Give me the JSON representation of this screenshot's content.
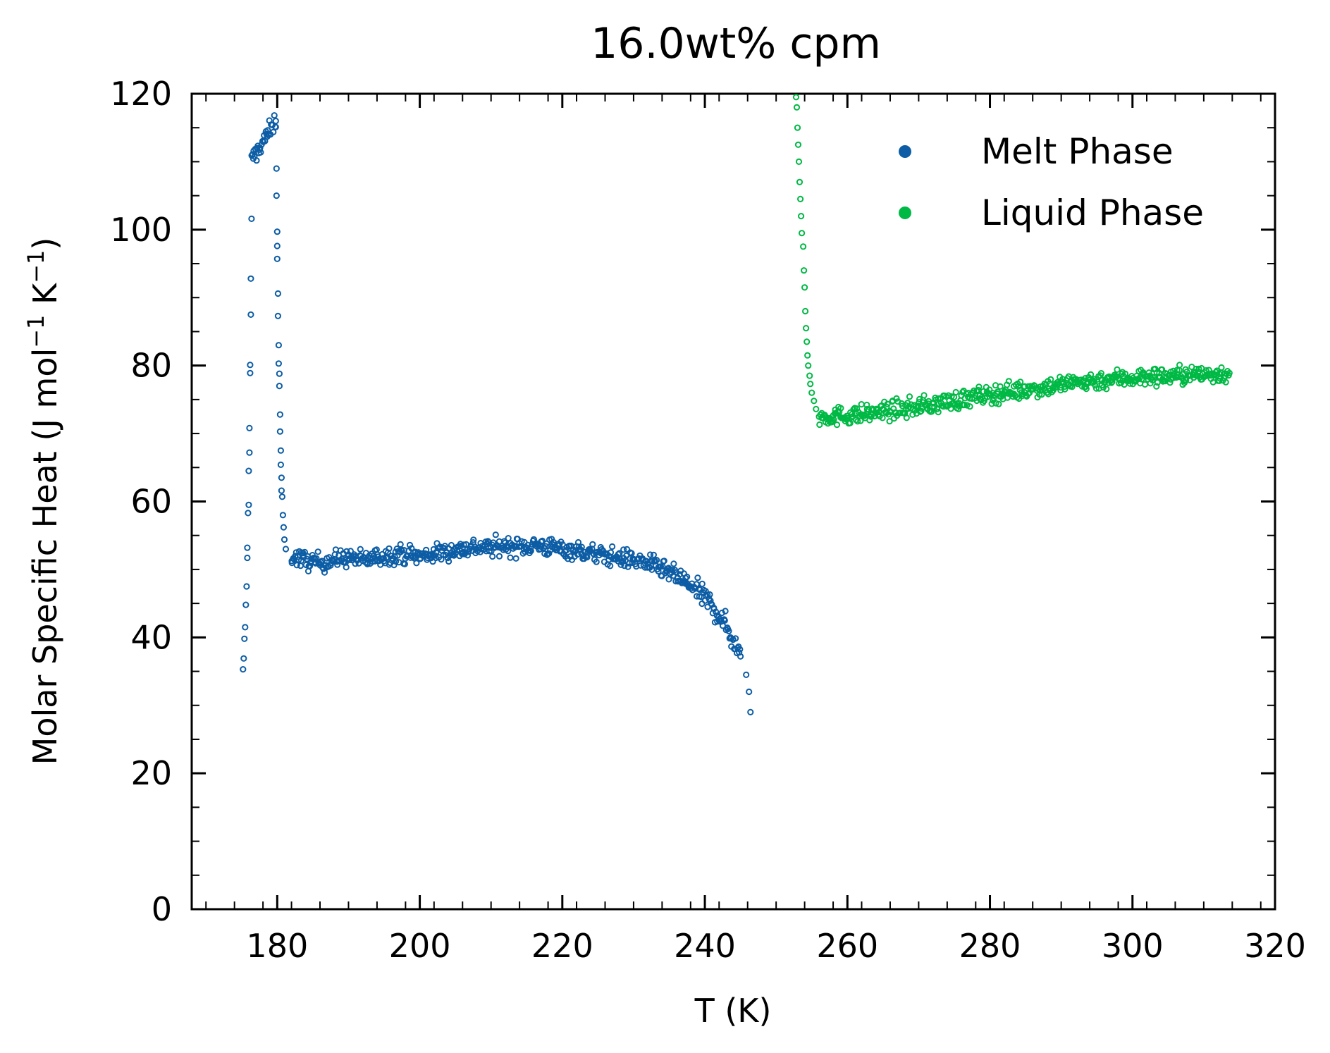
{
  "chart_data": {
    "type": "scatter",
    "title": "16.0wt% cpm",
    "xlabel": "T (K)",
    "ylabel": "Molar Specific Heat (J mol",
    "ylabel_unit_mid": " K",
    "ylabel_sup": "−1",
    "ylabel_close": ")",
    "xlim": [
      168,
      320
    ],
    "ylim": [
      0,
      120
    ],
    "x_ticks": [
      180,
      200,
      220,
      240,
      260,
      280,
      300,
      320
    ],
    "y_ticks": [
      0,
      20,
      40,
      60,
      80,
      100,
      120
    ],
    "x_tick_labels": [
      "180",
      "200",
      "220",
      "240",
      "260",
      "280",
      "300",
      "320"
    ],
    "y_tick_labels": [
      "0",
      "20",
      "40",
      "60",
      "80",
      "100",
      "120"
    ],
    "grid": false,
    "legend_position": "top-right",
    "series": [
      {
        "name": "Melt Phase",
        "color": "#0c5da5",
        "points": [
          [
            175.2,
            35.3
          ],
          [
            175.3,
            36.9
          ],
          [
            175.4,
            39.8
          ],
          [
            175.5,
            41.5
          ],
          [
            175.6,
            44.8
          ],
          [
            175.7,
            47.5
          ],
          [
            175.8,
            51.7
          ],
          [
            175.8,
            53.2
          ],
          [
            175.9,
            58.3
          ],
          [
            176.0,
            59.5
          ],
          [
            176.0,
            64.5
          ],
          [
            176.1,
            67.2
          ],
          [
            176.1,
            70.8
          ],
          [
            176.2,
            78.9
          ],
          [
            176.2,
            80.1
          ],
          [
            176.3,
            87.5
          ],
          [
            176.3,
            92.8
          ],
          [
            176.4,
            101.6
          ],
          [
            176.4,
            110.2
          ],
          [
            179.8,
            116.0
          ],
          [
            179.8,
            115.1
          ],
          [
            179.9,
            109.0
          ],
          [
            179.9,
            105.0
          ],
          [
            180.0,
            99.7
          ],
          [
            180.0,
            97.6
          ],
          [
            180.0,
            95.7
          ],
          [
            180.1,
            90.6
          ],
          [
            180.1,
            87.3
          ],
          [
            180.2,
            83.0
          ],
          [
            180.2,
            80.3
          ],
          [
            180.3,
            78.8
          ],
          [
            180.3,
            77.0
          ],
          [
            180.4,
            72.8
          ],
          [
            180.4,
            70.3
          ],
          [
            180.5,
            67.5
          ],
          [
            180.5,
            65.4
          ],
          [
            180.6,
            63.5
          ],
          [
            180.6,
            61.6
          ],
          [
            180.7,
            60.7
          ],
          [
            180.8,
            58.0
          ],
          [
            180.9,
            56.2
          ],
          [
            181.0,
            54.4
          ],
          [
            181.2,
            53.0
          ],
          [
            182,
            52.0
          ],
          [
            184,
            51.3
          ],
          [
            186,
            51.0
          ],
          [
            188,
            51.4
          ],
          [
            190,
            51.8
          ],
          [
            192,
            51.3
          ],
          [
            194,
            51.8
          ],
          [
            196,
            52.2
          ],
          [
            198,
            52.3
          ],
          [
            200,
            51.9
          ],
          [
            202,
            52.3
          ],
          [
            204,
            52.7
          ],
          [
            206,
            53.0
          ],
          [
            208,
            53.3
          ],
          [
            210,
            53.2
          ],
          [
            212,
            53.5
          ],
          [
            214,
            53.3
          ],
          [
            216,
            53.6
          ],
          [
            218,
            53.3
          ],
          [
            220,
            53.0
          ],
          [
            222,
            52.8
          ],
          [
            224,
            52.4
          ],
          [
            226,
            52.0
          ],
          [
            228,
            51.7
          ],
          [
            230,
            51.4
          ],
          [
            232,
            50.9
          ],
          [
            234,
            50.0
          ],
          [
            236,
            49.0
          ],
          [
            238,
            47.6
          ],
          [
            240,
            45.8
          ],
          [
            241,
            44.6
          ],
          [
            242,
            43.2
          ],
          [
            243,
            41.6
          ],
          [
            244,
            39.5
          ],
          [
            245,
            37.2
          ],
          [
            245.8,
            34.5
          ],
          [
            246.2,
            32.0
          ],
          [
            246.4,
            29.0
          ]
        ]
      },
      {
        "name": "Liquid Phase",
        "color": "#00b945",
        "points": [
          [
            252.8,
            119.5
          ],
          [
            252.9,
            118.0
          ],
          [
            253.0,
            115.0
          ],
          [
            253.1,
            112.5
          ],
          [
            253.2,
            110.0
          ],
          [
            253.3,
            107.0
          ],
          [
            253.4,
            104.5
          ],
          [
            253.5,
            102.0
          ],
          [
            253.6,
            99.5
          ],
          [
            253.8,
            97.5
          ],
          [
            253.9,
            94.0
          ],
          [
            254.0,
            91.5
          ],
          [
            254.1,
            88.0
          ],
          [
            254.2,
            85.5
          ],
          [
            254.3,
            83.5
          ],
          [
            254.4,
            81.5
          ],
          [
            254.5,
            80.0
          ],
          [
            254.7,
            78.5
          ],
          [
            254.8,
            77.3
          ],
          [
            255.0,
            76.0
          ],
          [
            255.3,
            74.8
          ],
          [
            255.6,
            73.6
          ],
          [
            256,
            72.6
          ],
          [
            258,
            72.5
          ],
          [
            260,
            72.7
          ],
          [
            262,
            72.8
          ],
          [
            264,
            73.1
          ],
          [
            266,
            73.4
          ],
          [
            268,
            73.6
          ],
          [
            270,
            74.0
          ],
          [
            272,
            74.3
          ],
          [
            274,
            74.7
          ],
          [
            276,
            75.0
          ],
          [
            278,
            75.4
          ],
          [
            280,
            75.7
          ],
          [
            282,
            76.1
          ],
          [
            284,
            76.3
          ],
          [
            286,
            76.6
          ],
          [
            288,
            76.9
          ],
          [
            290,
            77.2
          ],
          [
            292,
            77.5
          ],
          [
            294,
            77.7
          ],
          [
            296,
            77.9
          ],
          [
            298,
            78.1
          ],
          [
            300,
            78.2
          ],
          [
            302,
            78.3
          ],
          [
            304,
            78.4
          ],
          [
            306,
            78.5
          ],
          [
            308,
            78.6
          ],
          [
            310,
            78.7
          ],
          [
            312,
            78.8
          ],
          [
            313.6,
            78.9
          ]
        ]
      }
    ]
  }
}
